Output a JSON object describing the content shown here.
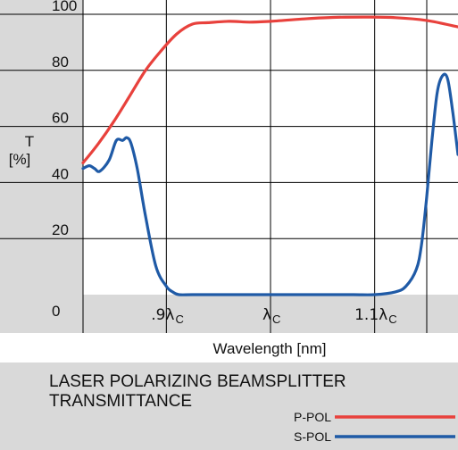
{
  "chart_data": {
    "type": "line",
    "title_line1": "LASER POLARIZING BEAMSPLITTER",
    "title_line2": "TRANSMITTANCE",
    "xlabel": "Wavelength [nm]",
    "ylabel_line1": "T",
    "ylabel_line2": "[%]",
    "ylim": [
      0,
      100
    ],
    "y_ticks": [
      "0",
      "20",
      "40",
      "60",
      "80",
      "100"
    ],
    "x_ticks": [
      {
        "main": ".9λ",
        "sub": "C"
      },
      {
        "main": "λ",
        "sub": "C"
      },
      {
        "main": "1.1λ",
        "sub": "C"
      }
    ],
    "x_scale": "relative wavelength λ/λc",
    "xlim": [
      0.82,
      1.18
    ],
    "grid": true,
    "legend_position": "bottom-right",
    "series": [
      {
        "name": "P-POL",
        "color": "#e8413c",
        "x": [
          0.82,
          0.835,
          0.85,
          0.865,
          0.88,
          0.895,
          0.91,
          0.925,
          0.94,
          0.96,
          0.98,
          1.0,
          1.03,
          1.06,
          1.09,
          1.12,
          1.15,
          1.18
        ],
        "y": [
          47,
          54,
          62,
          71,
          80,
          87,
          93,
          96.5,
          97,
          97.5,
          97.2,
          97.5,
          98.3,
          98.9,
          99,
          98.8,
          97.8,
          95.5
        ]
      },
      {
        "name": "S-POL",
        "color": "#1f5aa6",
        "x": [
          0.82,
          0.826,
          0.831,
          0.836,
          0.845,
          0.852,
          0.858,
          0.862,
          0.866,
          0.872,
          0.88,
          0.89,
          0.9,
          0.906,
          0.912,
          0.925,
          0.95,
          1.0,
          1.05,
          1.08,
          1.1,
          1.12,
          1.13,
          1.14,
          1.145,
          1.15,
          1.155,
          1.16,
          1.165,
          1.17,
          1.175,
          1.18
        ],
        "y": [
          45,
          46,
          45,
          44,
          48,
          55,
          55,
          56,
          54,
          45,
          28,
          10,
          3,
          1,
          0,
          0,
          0,
          0,
          0,
          0,
          0,
          1,
          3,
          9,
          18,
          35,
          55,
          72,
          78,
          77,
          65,
          50
        ]
      }
    ]
  }
}
